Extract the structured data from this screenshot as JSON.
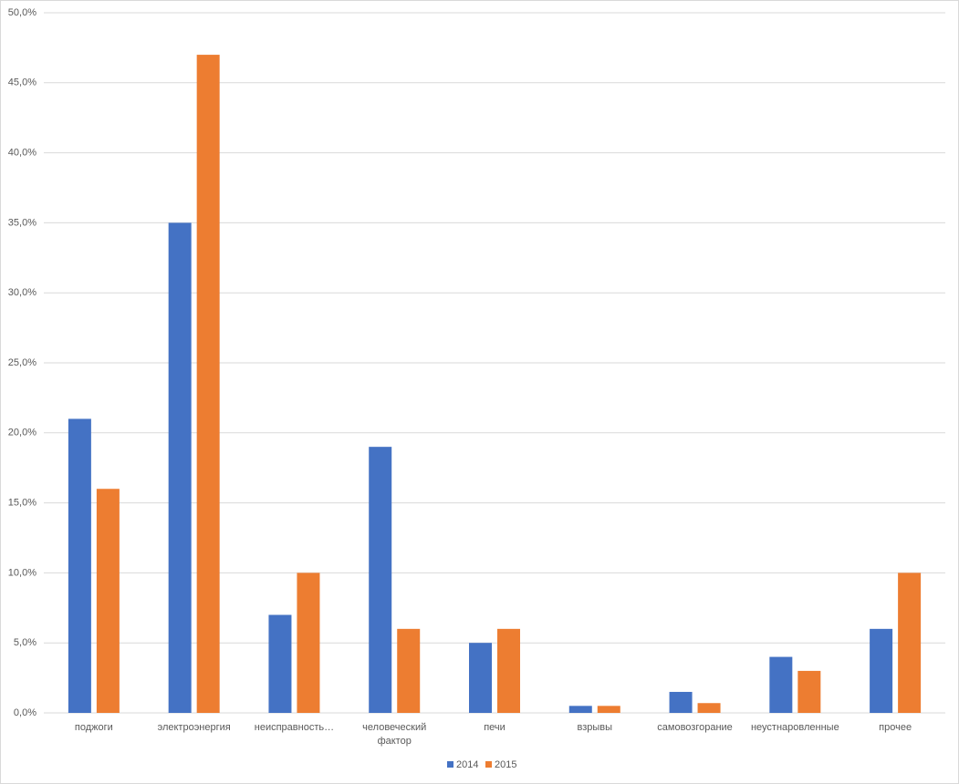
{
  "chart_data": {
    "type": "bar",
    "categories": [
      "поджоги",
      "электроэнергия",
      "неисправность…",
      "человеческий фактор",
      "печи",
      "взрывы",
      "самовозгорание",
      "неустнаровленные",
      "прочее"
    ],
    "series": [
      {
        "name": "2014",
        "color": "#4472c4",
        "values": [
          21,
          35,
          7,
          19,
          5,
          0.5,
          1.5,
          4,
          6
        ]
      },
      {
        "name": "2015",
        "color": "#ed7d31",
        "values": [
          16,
          47,
          10,
          6,
          6,
          0.5,
          0.7,
          3,
          10
        ]
      }
    ],
    "ylim": [
      0,
      50
    ],
    "yticks": [
      {
        "value": 0,
        "label": "0,0%"
      },
      {
        "value": 5,
        "label": "5,0%"
      },
      {
        "value": 10,
        "label": "10,0%"
      },
      {
        "value": 15,
        "label": "15,0%"
      },
      {
        "value": 20,
        "label": "20,0%"
      },
      {
        "value": 25,
        "label": "25,0%"
      },
      {
        "value": 30,
        "label": "30,0%"
      },
      {
        "value": 35,
        "label": "35,0%"
      },
      {
        "value": 40,
        "label": "40,0%"
      },
      {
        "value": 45,
        "label": "45,0%"
      },
      {
        "value": 50,
        "label": "50,0%"
      }
    ],
    "grid": true,
    "legend": "bottom"
  }
}
